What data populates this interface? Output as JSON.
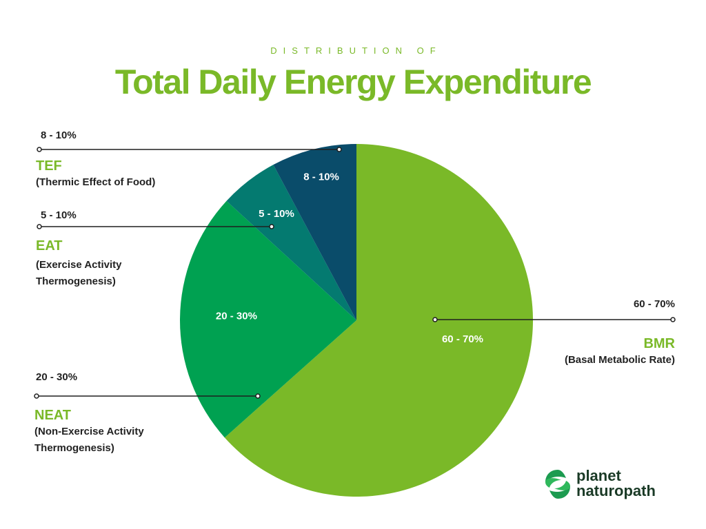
{
  "header": {
    "subtitle": "DISTRIBUTION OF",
    "title": "Total Daily Energy Expenditure"
  },
  "chart_data": {
    "type": "pie",
    "title": "Total Daily Energy Expenditure",
    "subtitle": "DISTRIBUTION OF",
    "slices": [
      {
        "abbr": "BMR",
        "name": "(Basal Metabolic Rate)",
        "label": "60 - 70%",
        "value": 65,
        "color": "#7ab928"
      },
      {
        "abbr": "NEAT",
        "name": "(Non-Exercise Activity Thermogenesis)",
        "label": "20 - 30%",
        "value": 24,
        "color": "#00a151"
      },
      {
        "abbr": "EAT",
        "name": "(Exercise Activity Thermogenesis)",
        "label": "5 - 10%",
        "value": 5.5,
        "color": "#047a70"
      },
      {
        "abbr": "TEF",
        "name": "(Thermic Effect of Food)",
        "label": "8 - 10%",
        "value": 8,
        "color": "#0a4c6a"
      }
    ]
  },
  "callouts": {
    "tef": {
      "range": "8 - 10%",
      "abbr": "TEF",
      "desc_1": "(Thermic Effect of Food)"
    },
    "eat": {
      "range": "5 - 10%",
      "abbr": "EAT",
      "desc_1": "(Exercise Activity",
      "desc_2": "Thermogenesis)"
    },
    "neat": {
      "range": "20 - 30%",
      "abbr": "NEAT",
      "desc_1": "(Non-Exercise Activity",
      "desc_2": "Thermogenesis)"
    },
    "bmr": {
      "range": "60 - 70%",
      "abbr": "BMR",
      "desc_1": "(Basal Metabolic Rate)"
    }
  },
  "logo": {
    "line_1": "planet",
    "line_2": "naturopath",
    "icon": "leaf-swirl-icon"
  }
}
